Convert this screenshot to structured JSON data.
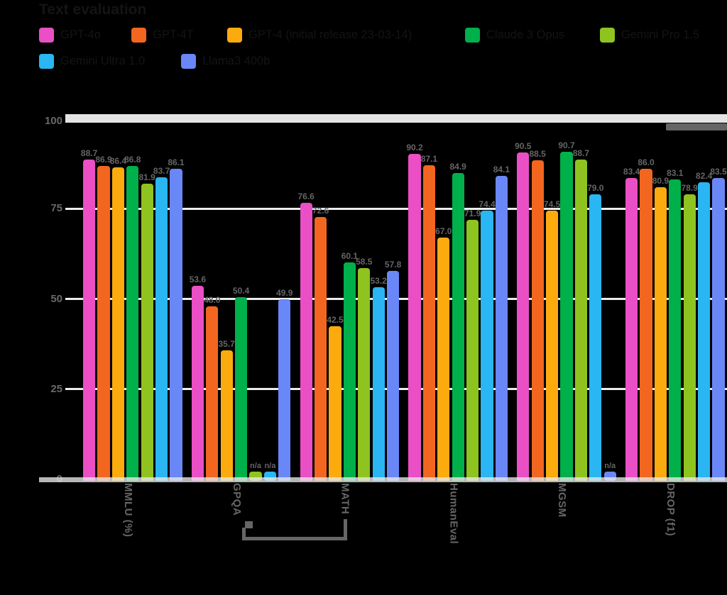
{
  "chart_data": {
    "type": "bar",
    "title": "Text evaluation",
    "categories": [
      "MMLU (%)",
      "GPQA",
      "MATH",
      "HumanEval",
      "MGSM",
      "DROP (f1)"
    ],
    "series": [
      {
        "name": "GPT-4o",
        "color": "#ea4fc5",
        "values": [
          88.7,
          53.6,
          76.6,
          90.2,
          90.5,
          83.4
        ]
      },
      {
        "name": "GPT-4T",
        "color": "#f2661f",
        "values": [
          86.9,
          48.0,
          72.6,
          87.1,
          88.5,
          86.0
        ]
      },
      {
        "name": "GPT-4 (initial release 23-03-14)",
        "color": "#fbab0e",
        "values": [
          86.4,
          35.7,
          42.5,
          67.0,
          74.5,
          80.9
        ]
      },
      {
        "name": "Claude 3 Opus",
        "color": "#00b04a",
        "values": [
          86.8,
          50.4,
          60.1,
          84.9,
          90.7,
          83.1
        ]
      },
      {
        "name": "Gemini Pro 1.5",
        "color": "#8fc320",
        "values": [
          81.9,
          null,
          58.5,
          71.9,
          88.7,
          78.9
        ]
      },
      {
        "name": "Gemini Ultra 1.0",
        "color": "#29b6f2",
        "values": [
          83.7,
          null,
          53.2,
          74.4,
          79.0,
          82.4
        ]
      },
      {
        "name": "Llama3 400b",
        "color": "#6a87f8",
        "values": [
          86.1,
          49.9,
          57.8,
          84.1,
          null,
          83.5
        ]
      }
    ],
    "ylim": [
      0,
      100
    ],
    "yticks": [
      0,
      25,
      50,
      75,
      100
    ],
    "na_label": "n/a",
    "legend_position": "top",
    "grid": "horizontal",
    "value_label_color": "#656565",
    "bracket_groups": [
      "GPQA",
      "MATH"
    ],
    "footnote_marker": "*"
  }
}
